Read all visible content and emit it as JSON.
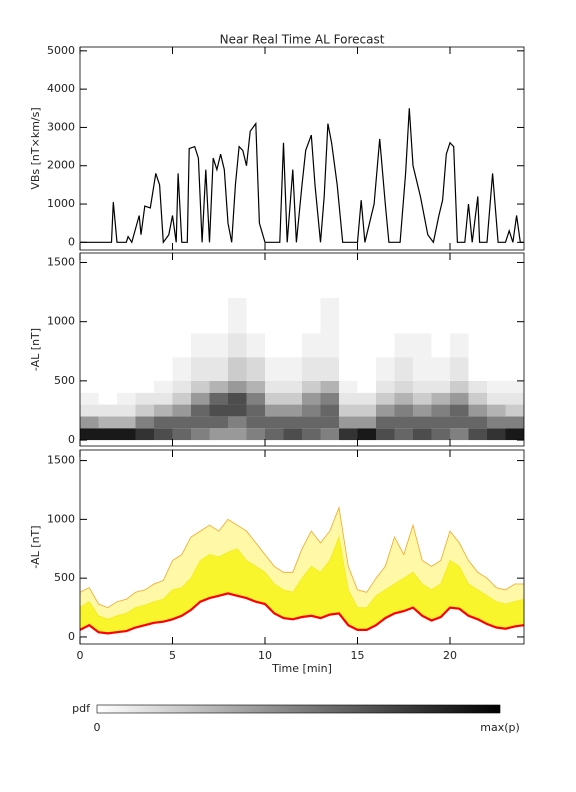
{
  "title": "Near Real Time AL Forecast",
  "chart_data": [
    {
      "type": "line",
      "y_label": "VBs [nT×km/s]",
      "color": "#000000",
      "xlim": [
        0,
        24
      ],
      "ylim": [
        -200,
        5100
      ],
      "yticks": [
        0,
        1000,
        2000,
        3000,
        4000,
        5000
      ],
      "x": [
        0,
        1.7,
        1.8,
        2.0,
        2.5,
        2.6,
        2.8,
        3.0,
        3.2,
        3.3,
        3.5,
        3.8,
        4.1,
        4.3,
        4.5,
        4.8,
        5.0,
        5.2,
        5.3,
        5.5,
        5.8,
        5.9,
        6.2,
        6.4,
        6.6,
        6.8,
        7.0,
        7.2,
        7.4,
        7.6,
        7.8,
        8.0,
        8.2,
        8.4,
        8.6,
        8.8,
        9.0,
        9.2,
        9.5,
        9.7,
        10.0,
        10.8,
        11.0,
        11.2,
        11.5,
        11.7,
        12.0,
        12.2,
        12.5,
        12.7,
        13.0,
        13.2,
        13.4,
        13.6,
        13.9,
        14.2,
        15.0,
        15.2,
        15.4,
        15.9,
        16.2,
        16.5,
        16.7,
        17.3,
        17.6,
        17.8,
        18.0,
        18.4,
        18.8,
        19.1,
        19.4,
        19.6,
        19.8,
        20.0,
        20.2,
        20.4,
        20.8,
        21.0,
        21.2,
        21.5,
        21.6,
        22.0,
        22.3,
        22.6,
        23.0,
        23.2,
        23.4,
        23.6,
        23.8,
        24
      ],
      "values": [
        0,
        0,
        1050,
        0,
        0,
        150,
        0,
        350,
        700,
        200,
        950,
        900,
        1800,
        1500,
        0,
        200,
        700,
        0,
        1800,
        0,
        0,
        2450,
        2500,
        2200,
        0,
        1900,
        0,
        2200,
        1900,
        2300,
        1900,
        500,
        0,
        1500,
        2500,
        2400,
        2000,
        2900,
        3100,
        500,
        0,
        0,
        2600,
        0,
        1900,
        0,
        1500,
        2400,
        2800,
        1500,
        0,
        1200,
        3100,
        2600,
        1500,
        0,
        0,
        1100,
        0,
        1000,
        2700,
        1000,
        0,
        0,
        1800,
        3500,
        2000,
        1200,
        200,
        0,
        700,
        1100,
        2300,
        2600,
        2500,
        0,
        0,
        1000,
        0,
        1200,
        0,
        0,
        1800,
        0,
        0,
        300,
        0,
        700,
        0,
        0
      ]
    },
    {
      "type": "heatmap",
      "y_label": "-AL [nT]",
      "xlim": [
        0,
        24
      ],
      "ylim": [
        -50,
        1580
      ],
      "yticks": [
        0,
        500,
        1000,
        1500
      ],
      "x_bins": [
        0,
        1,
        2,
        3,
        4,
        5,
        6,
        7,
        8,
        9,
        10,
        11,
        12,
        13,
        14,
        15,
        16,
        17,
        18,
        19,
        20,
        21,
        22,
        23,
        24
      ],
      "y_bins": [
        0,
        100,
        200,
        300,
        400,
        500,
        700,
        900,
        1200
      ],
      "values": [
        [
          0.9,
          0.4,
          0.1,
          0.05,
          0,
          0,
          0,
          0
        ],
        [
          0.9,
          0.3,
          0.1,
          0,
          0,
          0,
          0,
          0
        ],
        [
          0.9,
          0.3,
          0.1,
          0.05,
          0,
          0,
          0,
          0
        ],
        [
          0.8,
          0.5,
          0.2,
          0.1,
          0,
          0,
          0,
          0
        ],
        [
          0.7,
          0.6,
          0.3,
          0.1,
          0.05,
          0,
          0,
          0
        ],
        [
          0.6,
          0.6,
          0.4,
          0.2,
          0.1,
          0.05,
          0,
          0
        ],
        [
          0.5,
          0.6,
          0.6,
          0.4,
          0.2,
          0.1,
          0.05,
          0
        ],
        [
          0.4,
          0.6,
          0.7,
          0.6,
          0.3,
          0.1,
          0.05,
          0
        ],
        [
          0.4,
          0.5,
          0.7,
          0.7,
          0.4,
          0.2,
          0.1,
          0.05
        ],
        [
          0.5,
          0.6,
          0.6,
          0.5,
          0.3,
          0.15,
          0.05,
          0
        ],
        [
          0.6,
          0.6,
          0.4,
          0.2,
          0.1,
          0.05,
          0,
          0
        ],
        [
          0.7,
          0.6,
          0.4,
          0.2,
          0.1,
          0.05,
          0,
          0
        ],
        [
          0.6,
          0.6,
          0.5,
          0.4,
          0.2,
          0.1,
          0.05,
          0
        ],
        [
          0.5,
          0.6,
          0.6,
          0.5,
          0.3,
          0.1,
          0.05,
          0.05
        ],
        [
          0.8,
          0.4,
          0.2,
          0.1,
          0.05,
          0,
          0,
          0
        ],
        [
          0.9,
          0.4,
          0.2,
          0.1,
          0,
          0,
          0,
          0
        ],
        [
          0.7,
          0.6,
          0.4,
          0.2,
          0.1,
          0.05,
          0,
          0
        ],
        [
          0.6,
          0.6,
          0.5,
          0.3,
          0.15,
          0.1,
          0.05,
          0
        ],
        [
          0.7,
          0.6,
          0.4,
          0.2,
          0.1,
          0.05,
          0.05,
          0
        ],
        [
          0.6,
          0.6,
          0.5,
          0.3,
          0.1,
          0.05,
          0,
          0
        ],
        [
          0.5,
          0.6,
          0.6,
          0.4,
          0.2,
          0.1,
          0.05,
          0
        ],
        [
          0.7,
          0.6,
          0.4,
          0.2,
          0.1,
          0,
          0,
          0
        ],
        [
          0.8,
          0.5,
          0.3,
          0.1,
          0.05,
          0,
          0,
          0
        ],
        [
          0.9,
          0.5,
          0.2,
          0.1,
          0.05,
          0,
          0,
          0
        ]
      ]
    },
    {
      "type": "band",
      "y_label": "-AL [nT]",
      "x_label": "Time [min]",
      "xlim": [
        0,
        24
      ],
      "ylim": [
        -60,
        1590
      ],
      "yticks": [
        0,
        500,
        1000,
        1500
      ],
      "xticks": [
        0,
        5,
        10,
        15,
        20
      ],
      "x": [
        0,
        0.5,
        1,
        1.5,
        2,
        2.5,
        3,
        3.5,
        4,
        4.5,
        5,
        5.5,
        6,
        6.5,
        7,
        7.5,
        8,
        8.5,
        9,
        9.5,
        10,
        10.5,
        11,
        11.5,
        12,
        12.5,
        13,
        13.5,
        14,
        14.5,
        15,
        15.5,
        16,
        16.5,
        17,
        17.5,
        18,
        18.5,
        19,
        19.5,
        20,
        20.5,
        21,
        21.5,
        22,
        22.5,
        23,
        23.5,
        24
      ],
      "series": [
        {
          "color": "#f5a623",
          "fill": "#fff8a6",
          "values": [
            380,
            420,
            280,
            250,
            300,
            320,
            380,
            400,
            450,
            480,
            650,
            700,
            850,
            900,
            950,
            900,
            1000,
            950,
            900,
            800,
            700,
            600,
            550,
            550,
            750,
            900,
            800,
            900,
            1100,
            600,
            400,
            380,
            500,
            600,
            850,
            700,
            950,
            650,
            600,
            650,
            900,
            800,
            650,
            550,
            500,
            420,
            400,
            450,
            450
          ]
        },
        {
          "color": "#f5ec1c",
          "fill": "#f8f52c",
          "values": [
            250,
            300,
            180,
            150,
            180,
            200,
            250,
            270,
            300,
            320,
            400,
            420,
            500,
            650,
            700,
            680,
            720,
            750,
            650,
            600,
            550,
            450,
            400,
            380,
            500,
            600,
            550,
            650,
            850,
            400,
            250,
            250,
            350,
            400,
            450,
            500,
            550,
            450,
            400,
            450,
            650,
            600,
            450,
            400,
            350,
            300,
            280,
            300,
            320
          ]
        },
        {
          "color": "#ff0000",
          "values": [
            60,
            100,
            40,
            30,
            40,
            50,
            80,
            100,
            120,
            130,
            150,
            180,
            230,
            300,
            330,
            350,
            370,
            350,
            330,
            300,
            280,
            200,
            160,
            150,
            170,
            180,
            160,
            190,
            200,
            100,
            60,
            60,
            100,
            160,
            200,
            220,
            250,
            180,
            140,
            170,
            250,
            240,
            180,
            150,
            110,
            80,
            70,
            90,
            100
          ]
        }
      ]
    }
  ],
  "colorbar": {
    "label": "pdf",
    "min_label": "0",
    "max_label": "max(p)"
  }
}
